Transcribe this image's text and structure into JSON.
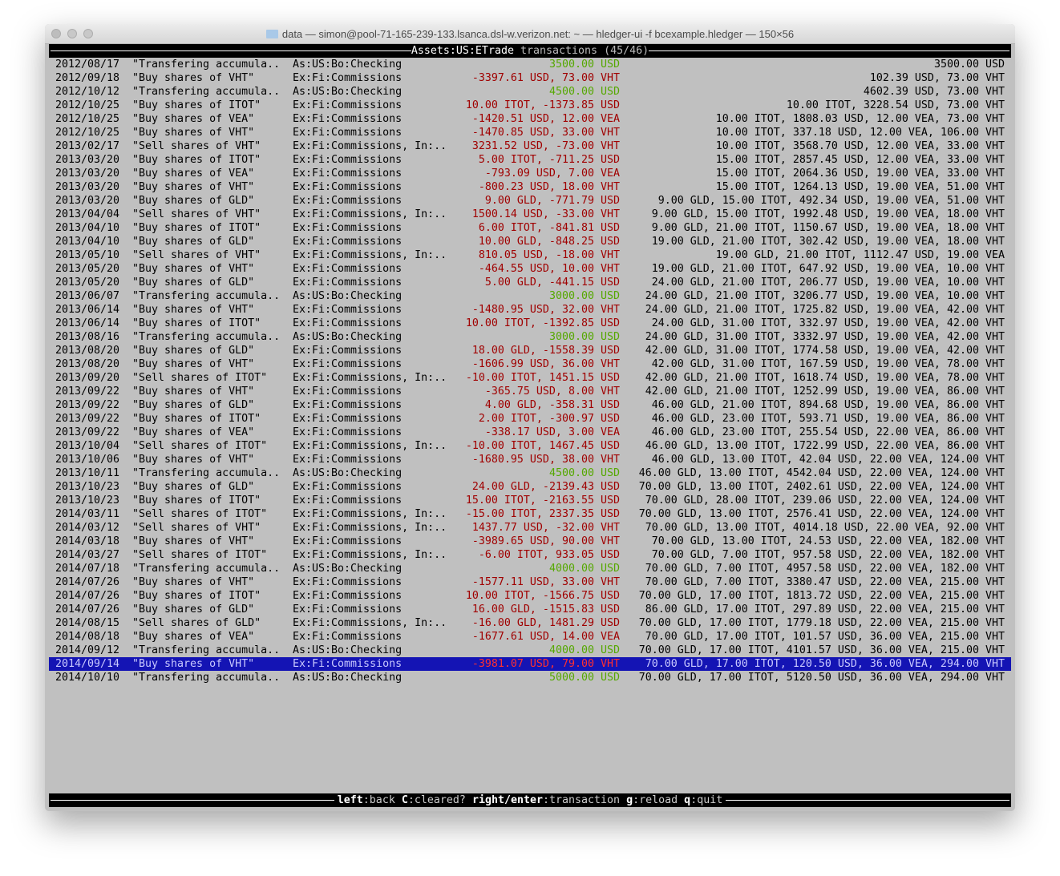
{
  "window": {
    "title": "data — simon@pool-71-165-239-133.lsanca.dsl-w.verizon.net: ~ — hledger-ui -f bcexample.hledger — 150×56"
  },
  "header": {
    "account": "Assets:US:ETrade",
    "label": "transactions",
    "position": "(45/46)"
  },
  "colors": {
    "negative": "#a00000",
    "positive": "#55a800",
    "selection": "#1414b4",
    "background": "#c0c0c0"
  },
  "selected_index": 44,
  "rows": [
    [
      "2012/08/17",
      "\"Transfering accumula..",
      "As:US:Bo:Checking",
      "3500.00 USD",
      "3500.00 USD",
      "green"
    ],
    [
      "2012/09/18",
      "\"Buy shares of VHT\"",
      "Ex:Fi:Commissions",
      "-3397.61 USD, 73.00 VHT",
      "102.39 USD, 73.00 VHT",
      "red"
    ],
    [
      "2012/10/12",
      "\"Transfering accumula..",
      "As:US:Bo:Checking",
      "4500.00 USD",
      "4602.39 USD, 73.00 VHT",
      "green"
    ],
    [
      "2012/10/25",
      "\"Buy shares of ITOT\"",
      "Ex:Fi:Commissions",
      "10.00 ITOT, -1373.85 USD",
      "10.00 ITOT, 3228.54 USD, 73.00 VHT",
      "red"
    ],
    [
      "2012/10/25",
      "\"Buy shares of VEA\"",
      "Ex:Fi:Commissions",
      "-1420.51 USD, 12.00 VEA",
      "10.00 ITOT, 1808.03 USD, 12.00 VEA, 73.00 VHT",
      "red"
    ],
    [
      "2012/10/25",
      "\"Buy shares of VHT\"",
      "Ex:Fi:Commissions",
      "-1470.85 USD, 33.00 VHT",
      "10.00 ITOT, 337.18 USD, 12.00 VEA, 106.00 VHT",
      "red"
    ],
    [
      "2013/02/17",
      "\"Sell shares of VHT\"",
      "Ex:Fi:Commissions, In:..",
      "3231.52 USD, -73.00 VHT",
      "10.00 ITOT, 3568.70 USD, 12.00 VEA, 33.00 VHT",
      "red"
    ],
    [
      "2013/03/20",
      "\"Buy shares of ITOT\"",
      "Ex:Fi:Commissions",
      "5.00 ITOT, -711.25 USD",
      "15.00 ITOT, 2857.45 USD, 12.00 VEA, 33.00 VHT",
      "red"
    ],
    [
      "2013/03/20",
      "\"Buy shares of VEA\"",
      "Ex:Fi:Commissions",
      "-793.09 USD, 7.00 VEA",
      "15.00 ITOT, 2064.36 USD, 19.00 VEA, 33.00 VHT",
      "red"
    ],
    [
      "2013/03/20",
      "\"Buy shares of VHT\"",
      "Ex:Fi:Commissions",
      "-800.23 USD, 18.00 VHT",
      "15.00 ITOT, 1264.13 USD, 19.00 VEA, 51.00 VHT",
      "red"
    ],
    [
      "2013/03/20",
      "\"Buy shares of GLD\"",
      "Ex:Fi:Commissions",
      "9.00 GLD, -771.79 USD",
      "9.00 GLD, 15.00 ITOT, 492.34 USD, 19.00 VEA, 51.00 VHT",
      "red"
    ],
    [
      "2013/04/04",
      "\"Sell shares of VHT\"",
      "Ex:Fi:Commissions, In:..",
      "1500.14 USD, -33.00 VHT",
      "9.00 GLD, 15.00 ITOT, 1992.48 USD, 19.00 VEA, 18.00 VHT",
      "red"
    ],
    [
      "2013/04/10",
      "\"Buy shares of ITOT\"",
      "Ex:Fi:Commissions",
      "6.00 ITOT, -841.81 USD",
      "9.00 GLD, 21.00 ITOT, 1150.67 USD, 19.00 VEA, 18.00 VHT",
      "red"
    ],
    [
      "2013/04/10",
      "\"Buy shares of GLD\"",
      "Ex:Fi:Commissions",
      "10.00 GLD, -848.25 USD",
      "19.00 GLD, 21.00 ITOT, 302.42 USD, 19.00 VEA, 18.00 VHT",
      "red"
    ],
    [
      "2013/05/10",
      "\"Sell shares of VHT\"",
      "Ex:Fi:Commissions, In:..",
      "810.05 USD, -18.00 VHT",
      "19.00 GLD, 21.00 ITOT, 1112.47 USD, 19.00 VEA",
      "red"
    ],
    [
      "2013/05/20",
      "\"Buy shares of VHT\"",
      "Ex:Fi:Commissions",
      "-464.55 USD, 10.00 VHT",
      "19.00 GLD, 21.00 ITOT, 647.92 USD, 19.00 VEA, 10.00 VHT",
      "red"
    ],
    [
      "2013/05/20",
      "\"Buy shares of GLD\"",
      "Ex:Fi:Commissions",
      "5.00 GLD, -441.15 USD",
      "24.00 GLD, 21.00 ITOT, 206.77 USD, 19.00 VEA, 10.00 VHT",
      "red"
    ],
    [
      "2013/06/07",
      "\"Transfering accumula..",
      "As:US:Bo:Checking",
      "3000.00 USD",
      "24.00 GLD, 21.00 ITOT, 3206.77 USD, 19.00 VEA, 10.00 VHT",
      "green"
    ],
    [
      "2013/06/14",
      "\"Buy shares of VHT\"",
      "Ex:Fi:Commissions",
      "-1480.95 USD, 32.00 VHT",
      "24.00 GLD, 21.00 ITOT, 1725.82 USD, 19.00 VEA, 42.00 VHT",
      "red"
    ],
    [
      "2013/06/14",
      "\"Buy shares of ITOT\"",
      "Ex:Fi:Commissions",
      "10.00 ITOT, -1392.85 USD",
      "24.00 GLD, 31.00 ITOT, 332.97 USD, 19.00 VEA, 42.00 VHT",
      "red"
    ],
    [
      "2013/08/16",
      "\"Transfering accumula..",
      "As:US:Bo:Checking",
      "3000.00 USD",
      "24.00 GLD, 31.00 ITOT, 3332.97 USD, 19.00 VEA, 42.00 VHT",
      "green"
    ],
    [
      "2013/08/20",
      "\"Buy shares of GLD\"",
      "Ex:Fi:Commissions",
      "18.00 GLD, -1558.39 USD",
      "42.00 GLD, 31.00 ITOT, 1774.58 USD, 19.00 VEA, 42.00 VHT",
      "red"
    ],
    [
      "2013/08/20",
      "\"Buy shares of VHT\"",
      "Ex:Fi:Commissions",
      "-1606.99 USD, 36.00 VHT",
      "42.00 GLD, 31.00 ITOT, 167.59 USD, 19.00 VEA, 78.00 VHT",
      "red"
    ],
    [
      "2013/09/20",
      "\"Sell shares of ITOT\"",
      "Ex:Fi:Commissions, In:..",
      "-10.00 ITOT, 1451.15 USD",
      "42.00 GLD, 21.00 ITOT, 1618.74 USD, 19.00 VEA, 78.00 VHT",
      "red"
    ],
    [
      "2013/09/22",
      "\"Buy shares of VHT\"",
      "Ex:Fi:Commissions",
      "-365.75 USD, 8.00 VHT",
      "42.00 GLD, 21.00 ITOT, 1252.99 USD, 19.00 VEA, 86.00 VHT",
      "red"
    ],
    [
      "2013/09/22",
      "\"Buy shares of GLD\"",
      "Ex:Fi:Commissions",
      "4.00 GLD, -358.31 USD",
      "46.00 GLD, 21.00 ITOT, 894.68 USD, 19.00 VEA, 86.00 VHT",
      "red"
    ],
    [
      "2013/09/22",
      "\"Buy shares of ITOT\"",
      "Ex:Fi:Commissions",
      "2.00 ITOT, -300.97 USD",
      "46.00 GLD, 23.00 ITOT, 593.71 USD, 19.00 VEA, 86.00 VHT",
      "red"
    ],
    [
      "2013/09/22",
      "\"Buy shares of VEA\"",
      "Ex:Fi:Commissions",
      "-338.17 USD, 3.00 VEA",
      "46.00 GLD, 23.00 ITOT, 255.54 USD, 22.00 VEA, 86.00 VHT",
      "red"
    ],
    [
      "2013/10/04",
      "\"Sell shares of ITOT\"",
      "Ex:Fi:Commissions, In:..",
      "-10.00 ITOT, 1467.45 USD",
      "46.00 GLD, 13.00 ITOT, 1722.99 USD, 22.00 VEA, 86.00 VHT",
      "red"
    ],
    [
      "2013/10/06",
      "\"Buy shares of VHT\"",
      "Ex:Fi:Commissions",
      "-1680.95 USD, 38.00 VHT",
      "46.00 GLD, 13.00 ITOT, 42.04 USD, 22.00 VEA, 124.00 VHT",
      "red"
    ],
    [
      "2013/10/11",
      "\"Transfering accumula..",
      "As:US:Bo:Checking",
      "4500.00 USD",
      "46.00 GLD, 13.00 ITOT, 4542.04 USD, 22.00 VEA, 124.00 VHT",
      "green"
    ],
    [
      "2013/10/23",
      "\"Buy shares of GLD\"",
      "Ex:Fi:Commissions",
      "24.00 GLD, -2139.43 USD",
      "70.00 GLD, 13.00 ITOT, 2402.61 USD, 22.00 VEA, 124.00 VHT",
      "red"
    ],
    [
      "2013/10/23",
      "\"Buy shares of ITOT\"",
      "Ex:Fi:Commissions",
      "15.00 ITOT, -2163.55 USD",
      "70.00 GLD, 28.00 ITOT, 239.06 USD, 22.00 VEA, 124.00 VHT",
      "red"
    ],
    [
      "2014/03/11",
      "\"Sell shares of ITOT\"",
      "Ex:Fi:Commissions, In:..",
      "-15.00 ITOT, 2337.35 USD",
      "70.00 GLD, 13.00 ITOT, 2576.41 USD, 22.00 VEA, 124.00 VHT",
      "red"
    ],
    [
      "2014/03/12",
      "\"Sell shares of VHT\"",
      "Ex:Fi:Commissions, In:..",
      "1437.77 USD, -32.00 VHT",
      "70.00 GLD, 13.00 ITOT, 4014.18 USD, 22.00 VEA, 92.00 VHT",
      "red"
    ],
    [
      "2014/03/18",
      "\"Buy shares of VHT\"",
      "Ex:Fi:Commissions",
      "-3989.65 USD, 90.00 VHT",
      "70.00 GLD, 13.00 ITOT, 24.53 USD, 22.00 VEA, 182.00 VHT",
      "red"
    ],
    [
      "2014/03/27",
      "\"Sell shares of ITOT\"",
      "Ex:Fi:Commissions, In:..",
      "-6.00 ITOT, 933.05 USD",
      "70.00 GLD, 7.00 ITOT, 957.58 USD, 22.00 VEA, 182.00 VHT",
      "red"
    ],
    [
      "2014/07/18",
      "\"Transfering accumula..",
      "As:US:Bo:Checking",
      "4000.00 USD",
      "70.00 GLD, 7.00 ITOT, 4957.58 USD, 22.00 VEA, 182.00 VHT",
      "green"
    ],
    [
      "2014/07/26",
      "\"Buy shares of VHT\"",
      "Ex:Fi:Commissions",
      "-1577.11 USD, 33.00 VHT",
      "70.00 GLD, 7.00 ITOT, 3380.47 USD, 22.00 VEA, 215.00 VHT",
      "red"
    ],
    [
      "2014/07/26",
      "\"Buy shares of ITOT\"",
      "Ex:Fi:Commissions",
      "10.00 ITOT, -1566.75 USD",
      "70.00 GLD, 17.00 ITOT, 1813.72 USD, 22.00 VEA, 215.00 VHT",
      "red"
    ],
    [
      "2014/07/26",
      "\"Buy shares of GLD\"",
      "Ex:Fi:Commissions",
      "16.00 GLD, -1515.83 USD",
      "86.00 GLD, 17.00 ITOT, 297.89 USD, 22.00 VEA, 215.00 VHT",
      "red"
    ],
    [
      "2014/08/15",
      "\"Sell shares of GLD\"",
      "Ex:Fi:Commissions, In:..",
      "-16.00 GLD, 1481.29 USD",
      "70.00 GLD, 17.00 ITOT, 1779.18 USD, 22.00 VEA, 215.00 VHT",
      "red"
    ],
    [
      "2014/08/18",
      "\"Buy shares of VEA\"",
      "Ex:Fi:Commissions",
      "-1677.61 USD, 14.00 VEA",
      "70.00 GLD, 17.00 ITOT, 101.57 USD, 36.00 VEA, 215.00 VHT",
      "red"
    ],
    [
      "2014/09/12",
      "\"Transfering accumula..",
      "As:US:Bo:Checking",
      "4000.00 USD",
      "70.00 GLD, 17.00 ITOT, 4101.57 USD, 36.00 VEA, 215.00 VHT",
      "green"
    ],
    [
      "2014/09/14",
      "\"Buy shares of VHT\"",
      "Ex:Fi:Commissions",
      "-3981.07 USD, 79.00 VHT",
      "70.00 GLD, 17.00 ITOT, 120.50 USD, 36.00 VEA, 294.00 VHT",
      "red"
    ],
    [
      "2014/10/10",
      "\"Transfering accumula..",
      "As:US:Bo:Checking",
      "5000.00 USD",
      "70.00 GLD, 17.00 ITOT, 5120.50 USD, 36.00 VEA, 294.00 VHT",
      "green"
    ]
  ],
  "footer": {
    "hints": [
      {
        "key": "left",
        "action": ":back"
      },
      {
        "key": "C",
        "action": ":cleared?"
      },
      {
        "key": "right/enter",
        "action": ":transaction"
      },
      {
        "key": "g",
        "action": ":reload"
      },
      {
        "key": "q",
        "action": ":quit"
      }
    ]
  }
}
